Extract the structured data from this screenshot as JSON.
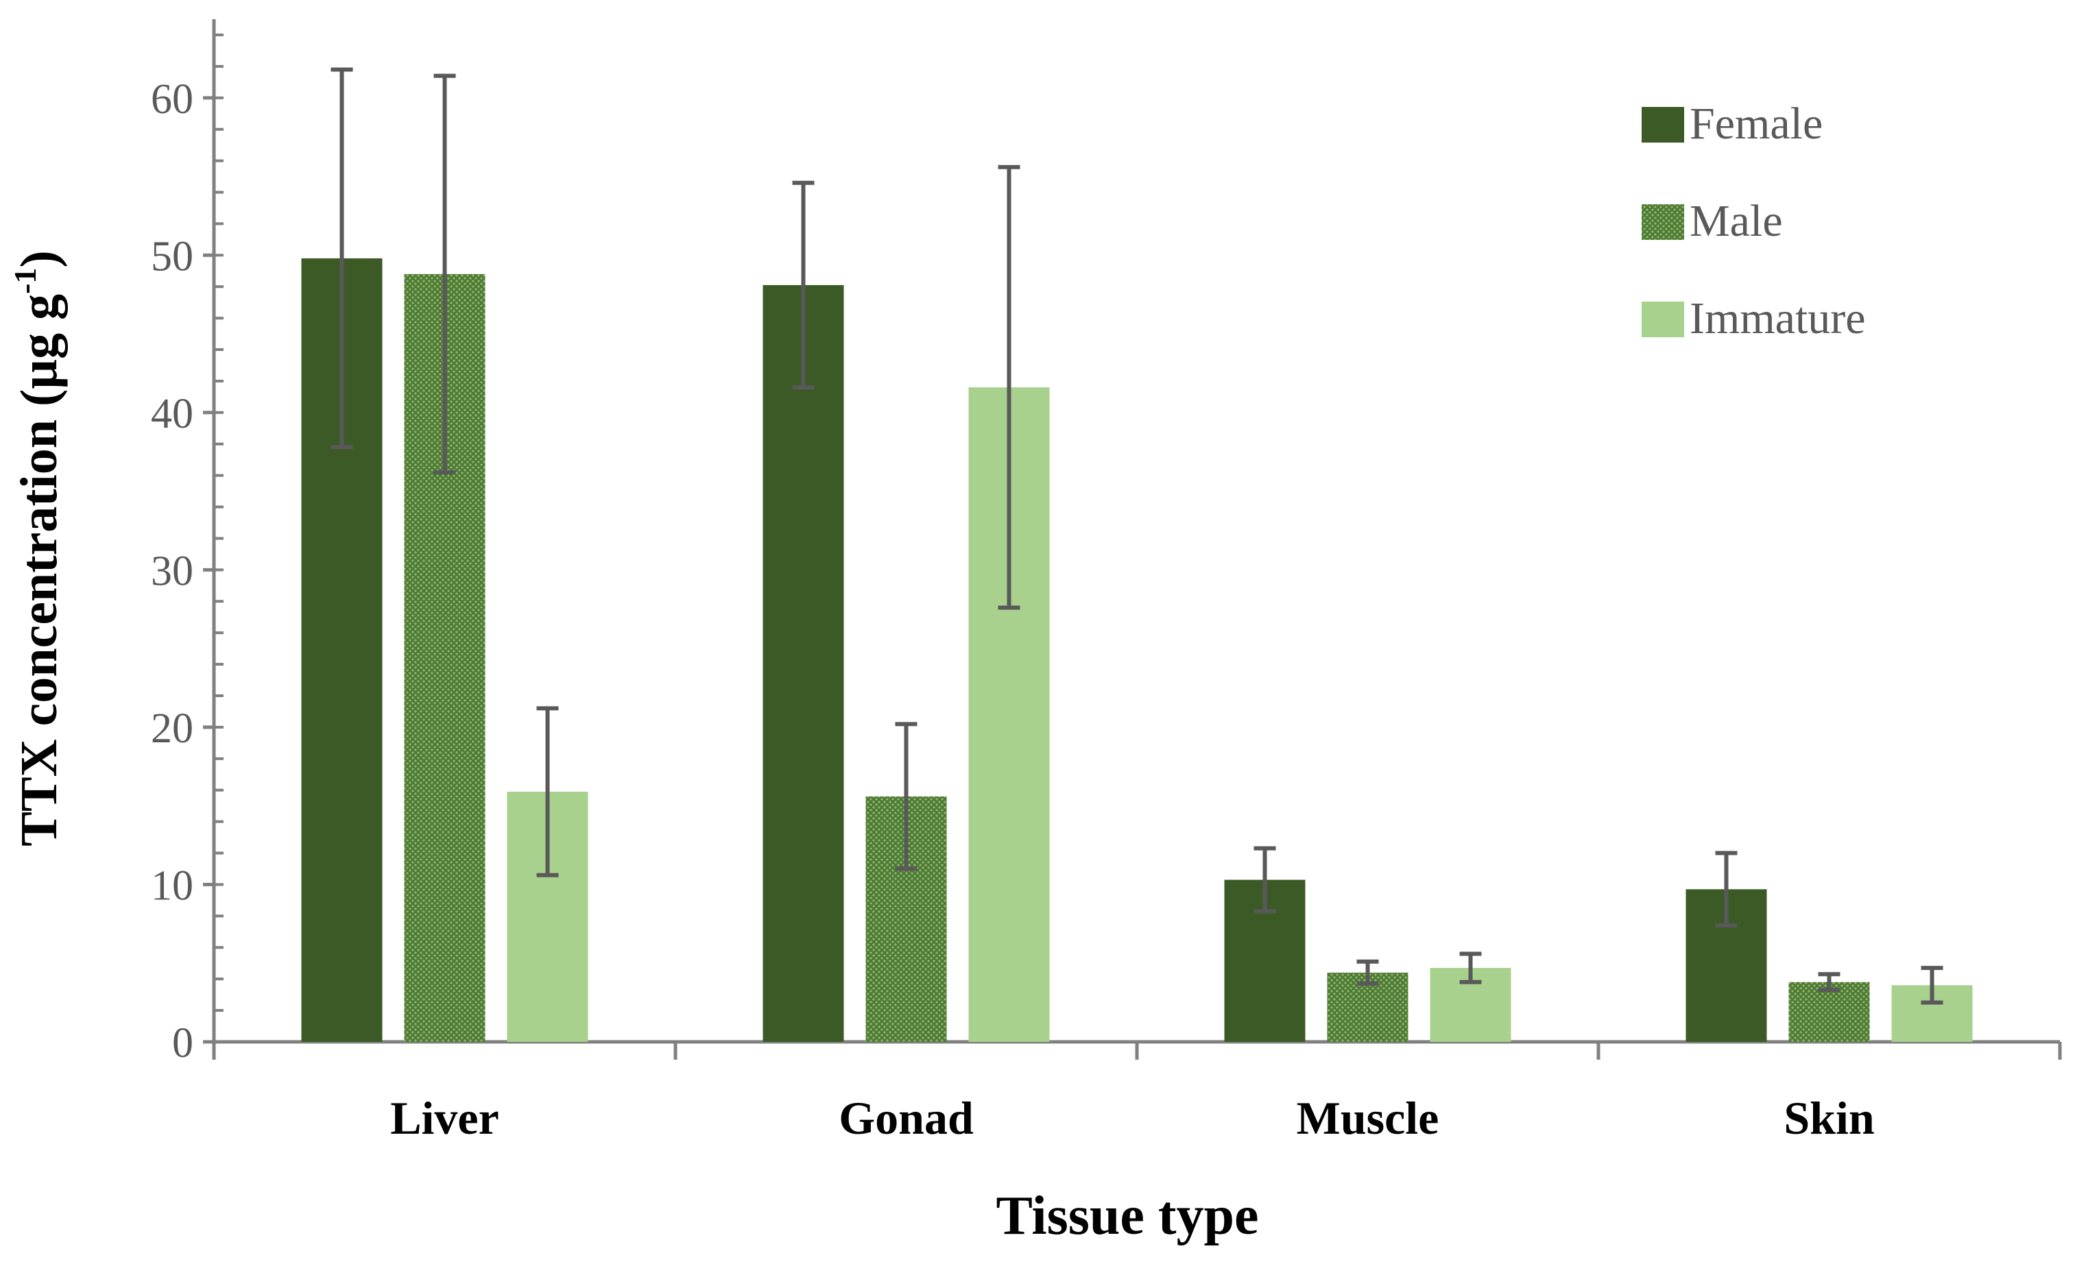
{
  "chart_data": {
    "type": "bar",
    "title": "",
    "xlabel": "Tissue type",
    "ylabel_main": "TTX concentration (µg g",
    "ylabel_sup": "-1",
    "ylabel_close": ")",
    "ylim": [
      0,
      65
    ],
    "yticks": [
      0,
      10,
      20,
      30,
      40,
      50,
      60
    ],
    "categories": [
      "Liver",
      "Gonad",
      "Muscle",
      "Skin"
    ],
    "series": [
      {
        "name": "Female",
        "color": "#3b5a26",
        "pattern": "solid",
        "values": [
          49.8,
          48.1,
          10.3,
          9.7
        ],
        "errors": [
          12.0,
          6.5,
          2.0,
          2.3
        ]
      },
      {
        "name": "Male",
        "color": "#6a8f4a",
        "pattern": "dotted",
        "values": [
          48.8,
          15.6,
          4.4,
          3.8
        ],
        "errors": [
          12.6,
          4.6,
          0.7,
          0.5
        ]
      },
      {
        "name": "Immature",
        "color": "#a8d18d",
        "pattern": "solid",
        "values": [
          15.9,
          41.6,
          4.7,
          3.6
        ],
        "errors": [
          5.3,
          14.0,
          0.9,
          1.1
        ]
      }
    ],
    "legend_position": "top-right",
    "grid": false
  }
}
